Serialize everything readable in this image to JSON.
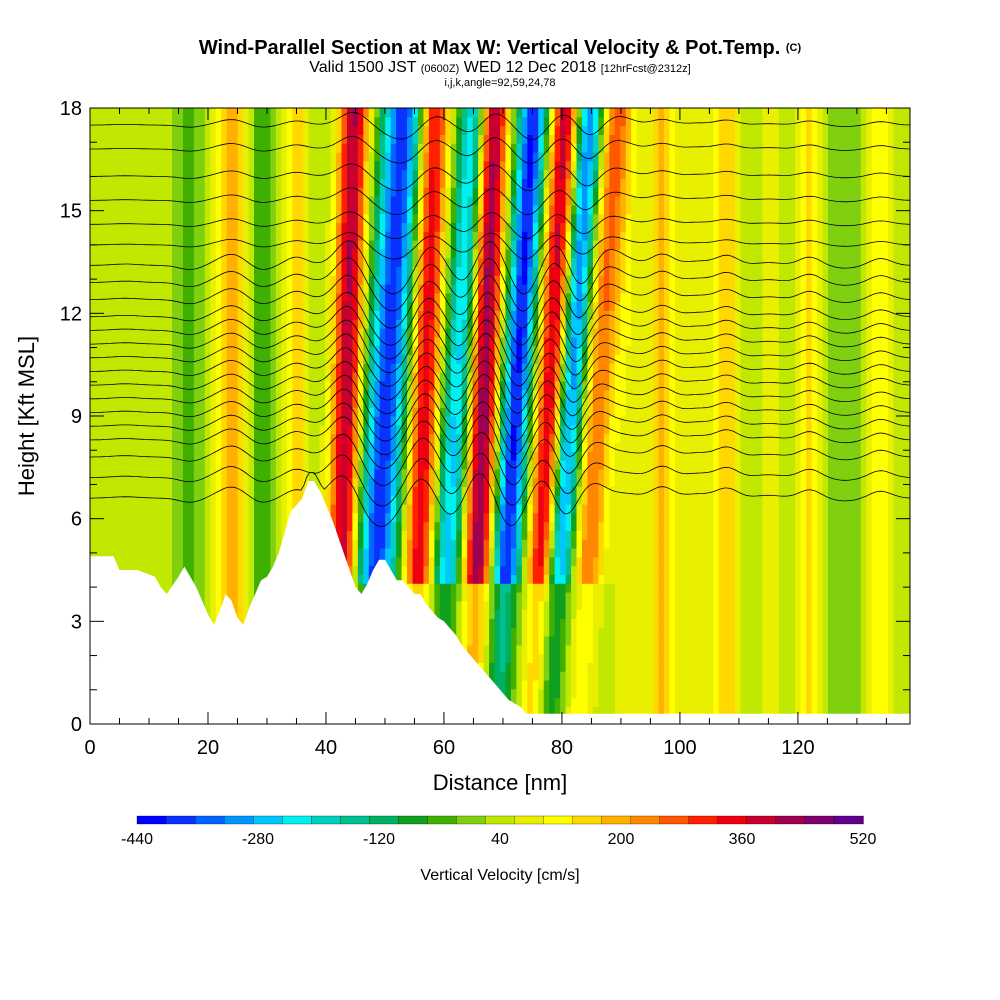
{
  "header": {
    "title": "Wind-Parallel Section at Max W: Vertical Velocity & Pot.Temp.",
    "title_mark": "(C)",
    "valid_pre": "Valid 1500 JST",
    "valid_utc": "(0600Z)",
    "valid_post": "WED 12 Dec 2018",
    "forecast": "[12hrFcst@2312z]",
    "indices": "i,j,k,angle=92,59,24,78"
  },
  "chart_data": {
    "type": "heatmap",
    "xlabel": "Distance [nm]",
    "ylabel": "Height [Kft MSL]",
    "xlim": [
      0,
      139
    ],
    "ylim": [
      0,
      18
    ],
    "x_ticks": [
      0,
      20,
      40,
      60,
      80,
      100,
      120
    ],
    "y_ticks": [
      0,
      3,
      6,
      9,
      12,
      15,
      18
    ],
    "colorbar": {
      "title": "Vertical Velocity [cm/s]",
      "tick_labels": [
        -440,
        -280,
        -120,
        40,
        200,
        360,
        520
      ],
      "min": -440,
      "max": 520,
      "colors": [
        "#0000ff",
        "#0a32ff",
        "#0064ff",
        "#0096ff",
        "#00c8ff",
        "#00f0f0",
        "#00d0c0",
        "#00c090",
        "#00b060",
        "#10a020",
        "#40b000",
        "#80d010",
        "#c0e800",
        "#e8f000",
        "#ffff00",
        "#ffd800",
        "#ffb000",
        "#ff8800",
        "#ff5800",
        "#ff2000",
        "#ee0010",
        "#c80030",
        "#a00050",
        "#800070",
        "#600090"
      ]
    },
    "terrain_kft": [
      [
        0,
        4.9
      ],
      [
        4,
        4.9
      ],
      [
        5,
        4.5
      ],
      [
        8,
        4.5
      ],
      [
        11,
        4.3
      ],
      [
        12,
        4.0
      ],
      [
        13,
        3.8
      ],
      [
        15,
        4.3
      ],
      [
        16,
        4.6
      ],
      [
        18,
        4.0
      ],
      [
        19,
        3.6
      ],
      [
        20,
        3.2
      ],
      [
        21,
        2.9
      ],
      [
        22,
        3.3
      ],
      [
        23,
        3.8
      ],
      [
        24,
        3.6
      ],
      [
        25,
        3.1
      ],
      [
        26,
        2.9
      ],
      [
        27,
        3.4
      ],
      [
        28,
        3.8
      ],
      [
        29,
        4.2
      ],
      [
        30,
        4.3
      ],
      [
        31,
        4.6
      ],
      [
        32,
        5.0
      ],
      [
        33,
        5.6
      ],
      [
        34,
        6.2
      ],
      [
        35,
        6.4
      ],
      [
        36,
        6.6
      ],
      [
        37,
        7.1
      ],
      [
        38,
        7.1
      ],
      [
        39,
        6.8
      ],
      [
        40,
        6.4
      ],
      [
        41,
        6.0
      ],
      [
        42,
        5.5
      ],
      [
        43,
        5.0
      ],
      [
        44,
        4.5
      ],
      [
        45,
        4.0
      ],
      [
        46,
        3.8
      ],
      [
        47,
        4.1
      ],
      [
        48,
        4.5
      ],
      [
        49,
        4.8
      ],
      [
        50,
        4.8
      ],
      [
        51,
        4.5
      ],
      [
        52,
        4.2
      ],
      [
        53,
        4.2
      ],
      [
        54,
        4.0
      ],
      [
        55,
        3.8
      ],
      [
        56,
        3.8
      ],
      [
        57,
        3.5
      ],
      [
        58,
        3.3
      ],
      [
        59,
        3.1
      ],
      [
        60,
        3.0
      ],
      [
        61,
        2.8
      ],
      [
        62,
        2.6
      ],
      [
        63,
        2.3
      ],
      [
        64,
        2.1
      ],
      [
        65,
        1.9
      ],
      [
        66,
        1.7
      ],
      [
        67,
        1.5
      ],
      [
        68,
        1.3
      ],
      [
        69,
        1.1
      ],
      [
        70,
        0.9
      ],
      [
        71,
        0.7
      ],
      [
        72,
        0.6
      ],
      [
        73,
        0.5
      ],
      [
        74,
        0.3
      ],
      [
        75,
        0.3
      ],
      [
        76,
        0.3
      ],
      [
        139,
        0.3
      ]
    ],
    "updraft_bands": [
      {
        "x": 6,
        "w": 20,
        "tilt": 0.0,
        "width": 2.5
      },
      {
        "x": 17,
        "w": -60,
        "tilt": 0.0,
        "width": 2.0
      },
      {
        "x": 24,
        "w": 160,
        "tilt": 0.0,
        "width": 2.5
      },
      {
        "x": 29,
        "w": -70,
        "tilt": 0.0,
        "width": 2.0
      },
      {
        "x": 35,
        "w": 120,
        "tilt": 0.0,
        "width": 2.0
      },
      {
        "x": 43,
        "w": 380,
        "tilt": 0.15,
        "width": 2.5
      },
      {
        "x": 49,
        "w": -420,
        "tilt": 0.35,
        "width": 3.5
      },
      {
        "x": 56,
        "w": 340,
        "tilt": 0.2,
        "width": 2.5
      },
      {
        "x": 61,
        "w": -300,
        "tilt": 0.35,
        "width": 2.5
      },
      {
        "x": 66,
        "w": 420,
        "tilt": 0.2,
        "width": 2.5
      },
      {
        "x": 71,
        "w": -440,
        "tilt": 0.35,
        "width": 2.5
      },
      {
        "x": 77,
        "w": 360,
        "tilt": 0.3,
        "width": 2.5
      },
      {
        "x": 80,
        "w": -380,
        "tilt": 0.4,
        "width": 2.2
      },
      {
        "x": 85,
        "w": 220,
        "tilt": 0.35,
        "width": 2.5
      },
      {
        "x": 91,
        "w": 60,
        "tilt": 0.0,
        "width": 2.5
      },
      {
        "x": 97,
        "w": 160,
        "tilt": 0.0,
        "width": 2.0
      },
      {
        "x": 103,
        "w": 60,
        "tilt": 0.0,
        "width": 2.5
      },
      {
        "x": 108,
        "w": 140,
        "tilt": 0.0,
        "width": 2.0
      },
      {
        "x": 115,
        "w": 40,
        "tilt": 0.0,
        "width": 2.5
      },
      {
        "x": 122,
        "w": 120,
        "tilt": 0.0,
        "width": 2.0
      },
      {
        "x": 128,
        "w": -40,
        "tilt": 0.0,
        "width": 2.5
      },
      {
        "x": 134,
        "w": 100,
        "tilt": 0.0,
        "width": 2.0
      }
    ],
    "theta_levels_kft": [
      6.6,
      7.2,
      7.8,
      8.3,
      8.7,
      9.1,
      9.5,
      9.9,
      10.3,
      10.7,
      11.1,
      11.5,
      11.9,
      12.4,
      12.9,
      13.4,
      14.0,
      14.6,
      15.3,
      16.0,
      16.8,
      17.5
    ]
  }
}
